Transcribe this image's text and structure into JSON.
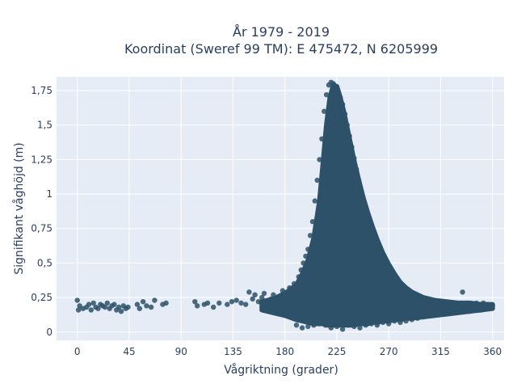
{
  "chart_data": {
    "type": "scatter",
    "title_line1": "År 1979 - 2019",
    "title_line2": "Koordinat (Sweref 99 TM): E 475472, N 6205999",
    "xlabel": "Vågriktning (grader)",
    "ylabel": "Signifikant våghöjd (m)",
    "xlim": [
      -18,
      370
    ],
    "ylim": [
      -0.06,
      1.85
    ],
    "xticks": [
      0,
      45,
      90,
      135,
      180,
      225,
      270,
      315,
      360
    ],
    "xtick_labels": [
      "0",
      "45",
      "90",
      "135",
      "180",
      "225",
      "270",
      "315",
      "360"
    ],
    "yticks": [
      0,
      0.25,
      0.5,
      0.75,
      1,
      1.25,
      1.5,
      1.75
    ],
    "ytick_labels": [
      "0",
      "0,25",
      "0,5",
      "0,75",
      "1",
      "1,25",
      "1,5",
      "1,75"
    ],
    "grid": true,
    "colors": {
      "background": "#e5ecf6",
      "grid": "#ffffff",
      "marker": "#2d5168",
      "text": "#2a3f5f"
    },
    "series": [
      {
        "points": [
          [
            0,
            0.23
          ],
          [
            1,
            0.16
          ],
          [
            2,
            0.19
          ],
          [
            5,
            0.17
          ],
          [
            8,
            0.18
          ],
          [
            10,
            0.2
          ],
          [
            12,
            0.16
          ],
          [
            14,
            0.21
          ],
          [
            16,
            0.18
          ],
          [
            18,
            0.17
          ],
          [
            20,
            0.2
          ],
          [
            22,
            0.19
          ],
          [
            24,
            0.18
          ],
          [
            26,
            0.21
          ],
          [
            28,
            0.17
          ],
          [
            30,
            0.19
          ],
          [
            32,
            0.2
          ],
          [
            34,
            0.16
          ],
          [
            36,
            0.18
          ],
          [
            38,
            0.15
          ],
          [
            40,
            0.19
          ],
          [
            42,
            0.17
          ],
          [
            44,
            0.18
          ],
          [
            52,
            0.2
          ],
          [
            54,
            0.17
          ],
          [
            57,
            0.22
          ],
          [
            60,
            0.19
          ],
          [
            64,
            0.18
          ],
          [
            67,
            0.23
          ],
          [
            74,
            0.2
          ],
          [
            77,
            0.21
          ],
          [
            102,
            0.22
          ],
          [
            104,
            0.19
          ],
          [
            110,
            0.2
          ],
          [
            113,
            0.21
          ],
          [
            118,
            0.18
          ],
          [
            123,
            0.21
          ],
          [
            130,
            0.2
          ],
          [
            134,
            0.22
          ],
          [
            138,
            0.23
          ],
          [
            142,
            0.21
          ],
          [
            146,
            0.2
          ],
          [
            149,
            0.29
          ],
          [
            152,
            0.24
          ],
          [
            154,
            0.27
          ],
          [
            157,
            0.22
          ],
          [
            160,
            0.25
          ],
          [
            162,
            0.28
          ],
          [
            165,
            0.21
          ],
          [
            168,
            0.24
          ],
          [
            170,
            0.27
          ],
          [
            172,
            0.22
          ],
          [
            174,
            0.18
          ],
          [
            176,
            0.25
          ],
          [
            178,
            0.3
          ],
          [
            180,
            0.2
          ],
          [
            182,
            0.26
          ],
          [
            184,
            0.32
          ],
          [
            186,
            0.22
          ],
          [
            188,
            0.35
          ],
          [
            190,
            0.28
          ],
          [
            192,
            0.4
          ],
          [
            194,
            0.45
          ],
          [
            196,
            0.5
          ],
          [
            198,
            0.55
          ],
          [
            200,
            0.6
          ],
          [
            202,
            0.7
          ],
          [
            204,
            0.8
          ],
          [
            206,
            0.95
          ],
          [
            208,
            1.1
          ],
          [
            210,
            1.25
          ],
          [
            212,
            1.4
          ],
          [
            214,
            1.6
          ],
          [
            216,
            1.72
          ],
          [
            218,
            1.79
          ],
          [
            220,
            1.81
          ],
          [
            222,
            1.8
          ],
          [
            224,
            1.78
          ],
          [
            226,
            1.74
          ],
          [
            228,
            1.7
          ],
          [
            230,
            1.65
          ],
          [
            232,
            1.58
          ],
          [
            234,
            1.5
          ],
          [
            236,
            1.42
          ],
          [
            238,
            1.34
          ],
          [
            240,
            1.26
          ],
          [
            242,
            1.18
          ],
          [
            244,
            1.1
          ],
          [
            246,
            1.03
          ],
          [
            248,
            0.96
          ],
          [
            250,
            0.9
          ],
          [
            252,
            0.85
          ],
          [
            254,
            0.8
          ],
          [
            256,
            0.74
          ],
          [
            258,
            0.68
          ],
          [
            260,
            0.64
          ],
          [
            262,
            0.6
          ],
          [
            264,
            0.56
          ],
          [
            266,
            0.52
          ],
          [
            268,
            0.49
          ],
          [
            270,
            0.46
          ],
          [
            272,
            0.43
          ],
          [
            274,
            0.4
          ],
          [
            276,
            0.38
          ],
          [
            278,
            0.35
          ],
          [
            280,
            0.33
          ],
          [
            282,
            0.32
          ],
          [
            284,
            0.31
          ],
          [
            286,
            0.3
          ],
          [
            288,
            0.29
          ],
          [
            290,
            0.28
          ],
          [
            292,
            0.27
          ],
          [
            294,
            0.26
          ],
          [
            296,
            0.25
          ],
          [
            298,
            0.25
          ],
          [
            300,
            0.24
          ],
          [
            302,
            0.24
          ],
          [
            304,
            0.23
          ],
          [
            306,
            0.23
          ],
          [
            308,
            0.22
          ],
          [
            310,
            0.22
          ],
          [
            312,
            0.22
          ],
          [
            314,
            0.21
          ],
          [
            316,
            0.21
          ],
          [
            318,
            0.21
          ],
          [
            320,
            0.21
          ],
          [
            322,
            0.2
          ],
          [
            324,
            0.2
          ],
          [
            326,
            0.2
          ],
          [
            328,
            0.21
          ],
          [
            330,
            0.19
          ],
          [
            332,
            0.2
          ],
          [
            334,
            0.29
          ],
          [
            336,
            0.2
          ],
          [
            338,
            0.21
          ],
          [
            340,
            0.2
          ],
          [
            342,
            0.19
          ],
          [
            344,
            0.2
          ],
          [
            346,
            0.21
          ],
          [
            348,
            0.2
          ],
          [
            350,
            0.19
          ],
          [
            352,
            0.21
          ],
          [
            354,
            0.2
          ],
          [
            356,
            0.19
          ],
          [
            358,
            0.18
          ],
          [
            360,
            0.19
          ],
          [
            190,
            0.05
          ],
          [
            195,
            0.03
          ],
          [
            200,
            0.04
          ],
          [
            205,
            0.05
          ],
          [
            210,
            0.06
          ],
          [
            215,
            0.05
          ],
          [
            220,
            0.03
          ],
          [
            225,
            0.04
          ],
          [
            230,
            0.02
          ],
          [
            235,
            0.05
          ],
          [
            240,
            0.04
          ],
          [
            245,
            0.03
          ],
          [
            250,
            0.05
          ],
          [
            255,
            0.06
          ],
          [
            260,
            0.05
          ],
          [
            265,
            0.07
          ],
          [
            270,
            0.06
          ],
          [
            275,
            0.08
          ],
          [
            280,
            0.07
          ],
          [
            285,
            0.08
          ],
          [
            290,
            0.09
          ],
          [
            295,
            0.1
          ],
          [
            300,
            0.11
          ],
          [
            305,
            0.12
          ],
          [
            310,
            0.13
          ],
          [
            320,
            0.14
          ],
          [
            330,
            0.15
          ],
          [
            340,
            0.15
          ],
          [
            350,
            0.16
          ]
        ],
        "filled_envelope": {
          "x": [
            160,
            170,
            180,
            190,
            195,
            200,
            205,
            210,
            213,
            216,
            219,
            222,
            225,
            228,
            231,
            234,
            237,
            240,
            244,
            248,
            252,
            256,
            260,
            265,
            270,
            275,
            280,
            285,
            290,
            300,
            310,
            320,
            330,
            340,
            350,
            360
          ],
          "y_low": [
            0.16,
            0.14,
            0.12,
            0.09,
            0.08,
            0.07,
            0.06,
            0.06,
            0.06,
            0.05,
            0.05,
            0.05,
            0.05,
            0.05,
            0.05,
            0.05,
            0.05,
            0.05,
            0.06,
            0.06,
            0.06,
            0.07,
            0.07,
            0.08,
            0.08,
            0.09,
            0.09,
            0.1,
            0.1,
            0.11,
            0.12,
            0.13,
            0.14,
            0.15,
            0.16,
            0.17
          ],
          "y_high": [
            0.22,
            0.24,
            0.28,
            0.34,
            0.42,
            0.52,
            0.68,
            0.95,
            1.22,
            1.5,
            1.7,
            1.79,
            1.78,
            1.7,
            1.6,
            1.48,
            1.36,
            1.24,
            1.1,
            0.97,
            0.86,
            0.76,
            0.67,
            0.57,
            0.49,
            0.42,
            0.36,
            0.32,
            0.29,
            0.25,
            0.23,
            0.22,
            0.21,
            0.21,
            0.2,
            0.2
          ]
        }
      }
    ]
  }
}
